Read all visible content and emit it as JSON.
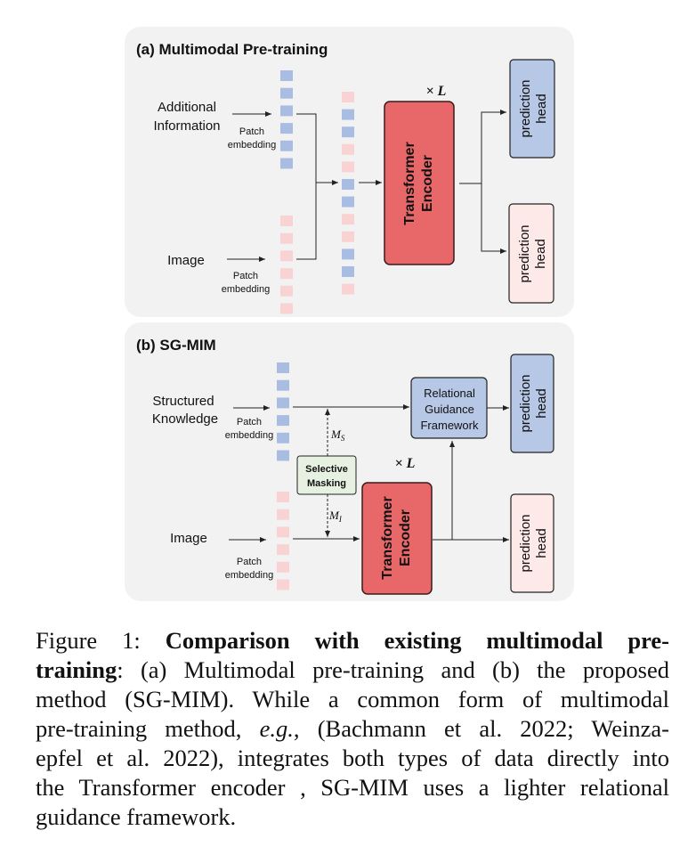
{
  "panel_a": {
    "title": "(a) Multimodal Pre-training",
    "input_top_line1": "Additional",
    "input_top_line2": "Information",
    "input_bottom": "Image",
    "patch_line1": "Patch",
    "patch_line2": "embedding",
    "encoder_line1": "Transformer",
    "encoder_line2": "Encoder",
    "repeat": "× L",
    "head_line1": "prediction",
    "head_line2": "head",
    "merged_sequence": [
      "image",
      "text",
      "text",
      "image",
      "image",
      "text",
      "text",
      "image",
      "image",
      "text",
      "text",
      "image"
    ]
  },
  "panel_b": {
    "title": "(b) SG-MIM",
    "input_top_line1": "Structured",
    "input_top_line2": "Knowledge",
    "input_bottom": "Image",
    "patch_line1": "Patch",
    "patch_line2": "embedding",
    "rgf_line1": "Relational",
    "rgf_line2": "Guidance",
    "rgf_line3": "Framework",
    "masking_line1": "Selective",
    "masking_line2": "Masking",
    "mask_s": "M",
    "mask_s_sub": "S",
    "mask_i": "M",
    "mask_i_sub": "I",
    "encoder_line1": "Transformer",
    "encoder_line2": "Encoder",
    "repeat": "× L",
    "head_line1": "prediction",
    "head_line2": "head"
  },
  "colors": {
    "text_token": "#a9bde3",
    "image_token": "#f9d3d3",
    "encoder": "#e8686a",
    "blue_box": "#b7c7e6",
    "pink_box": "#fde9e8",
    "masking_box": "#e7f1e2",
    "panel_bg": "#f2f2f2"
  },
  "caption": {
    "label": "Figure 1:",
    "bold1": "Comparison with existing multimodal pre-",
    "bold2": "training",
    "l2_rest": ": (a) Multimodal pre-training and (b) the proposed",
    "l3": "method (SG-MIM). While a common form of multimodal",
    "l4a": "pre-training method,",
    "l4_eg": "e.g.",
    "l4b": ", (Bachmann et al. 2022; Weinza-",
    "l5": "epfel et al. 2022), integrates both types of data directly into",
    "l6": "the Transformer encoder , SG-MIM uses a lighter relational",
    "l7": "guidance framework."
  }
}
